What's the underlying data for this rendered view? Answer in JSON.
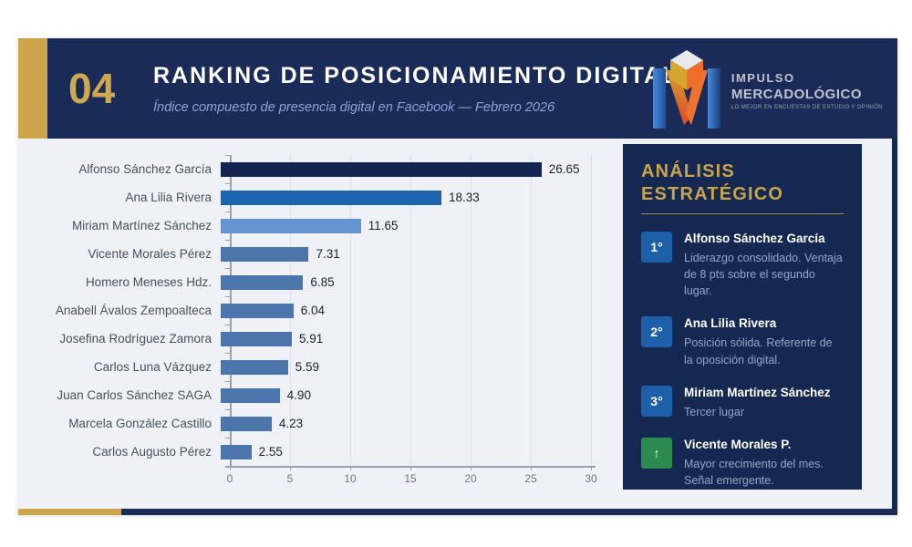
{
  "header": {
    "number": "04",
    "title": "RANKING DE POSICIONAMIENTO DIGITAL",
    "subtitle": "Índice compuesto de presencia digital en Facebook — Febrero 2026"
  },
  "logo": {
    "line1": "IMPULSO",
    "line2": "MERCADOLÓGICO",
    "tagline": "LO MEJOR EN ENCUESTAS DE ESTUDIO Y OPINIÓN"
  },
  "chart_data": {
    "type": "bar",
    "orientation": "horizontal",
    "title": "RANKING DE POSICIONAMIENTO DIGITAL",
    "xlabel": "",
    "ylabel": "",
    "xlim": [
      0,
      30
    ],
    "xticks": [
      0,
      5,
      10,
      15,
      20,
      25,
      30
    ],
    "grid": true,
    "categories": [
      "Alfonso Sánchez García",
      "Ana Lilia Rivera",
      "Miriam Martínez Sánchez",
      "Vicente Morales Pérez",
      "Homero Meneses Hdz.",
      "Anabell Ávalos Zempoalteca",
      "Josefina Rodríguez Zamora",
      "Carlos Luna Vázquez",
      "Juan Carlos Sánchez SAGA",
      "Marcela González Castillo",
      "Carlos Augusto Pérez"
    ],
    "values": [
      26.65,
      18.33,
      11.65,
      7.31,
      6.85,
      6.04,
      5.91,
      5.59,
      4.9,
      4.23,
      2.55
    ],
    "value_labels": [
      "26.65",
      "18.33",
      "11.65",
      "7.31",
      "6.85",
      "6.04",
      "5.91",
      "5.59",
      "4.90",
      "4.23",
      "2.55"
    ],
    "bar_colors": [
      "#142450",
      "#1d64b0",
      "#6694d3",
      "#4c76ab",
      "#4c76ab",
      "#4c76ab",
      "#4c76ab",
      "#4c76ab",
      "#4c76ab",
      "#4c76ab",
      "#4c76ab"
    ]
  },
  "panel": {
    "title_line1": "ANÁLISIS",
    "title_line2": "ESTRATÉGICO",
    "items": [
      {
        "badge": "1°",
        "badge_color": "#1e5fa9",
        "name": "Alfonso Sánchez García",
        "desc": "Liderazgo consolidado. Ventaja de 8 pts sobre el segundo lugar."
      },
      {
        "badge": "2°",
        "badge_color": "#1e5fa9",
        "name": "Ana Lilia Rivera",
        "desc": "Posición sólida. Referente de la oposición digital."
      },
      {
        "badge": "3°",
        "badge_color": "#1e5fa9",
        "name": "Miriam Martínez Sánchez",
        "desc": "Tercer lugar"
      },
      {
        "badge": "↑",
        "badge_color": "#2c8a4e",
        "name": "Vicente Morales P.",
        "desc": "Mayor crecimiento del mes. Señal emergente."
      }
    ]
  },
  "colors": {
    "header_navy": "#1b2b57",
    "panel_navy": "#142851",
    "gold_accent": "#cda54c",
    "gold_text": "#c8a44b",
    "content_bg": "#eff1f6",
    "rank1_bar": "#142450",
    "rank2_bar": "#1d64b0",
    "rank3_bar": "#6694d3",
    "default_bar": "#4c76ab",
    "growth_green": "#2c8a4e"
  }
}
